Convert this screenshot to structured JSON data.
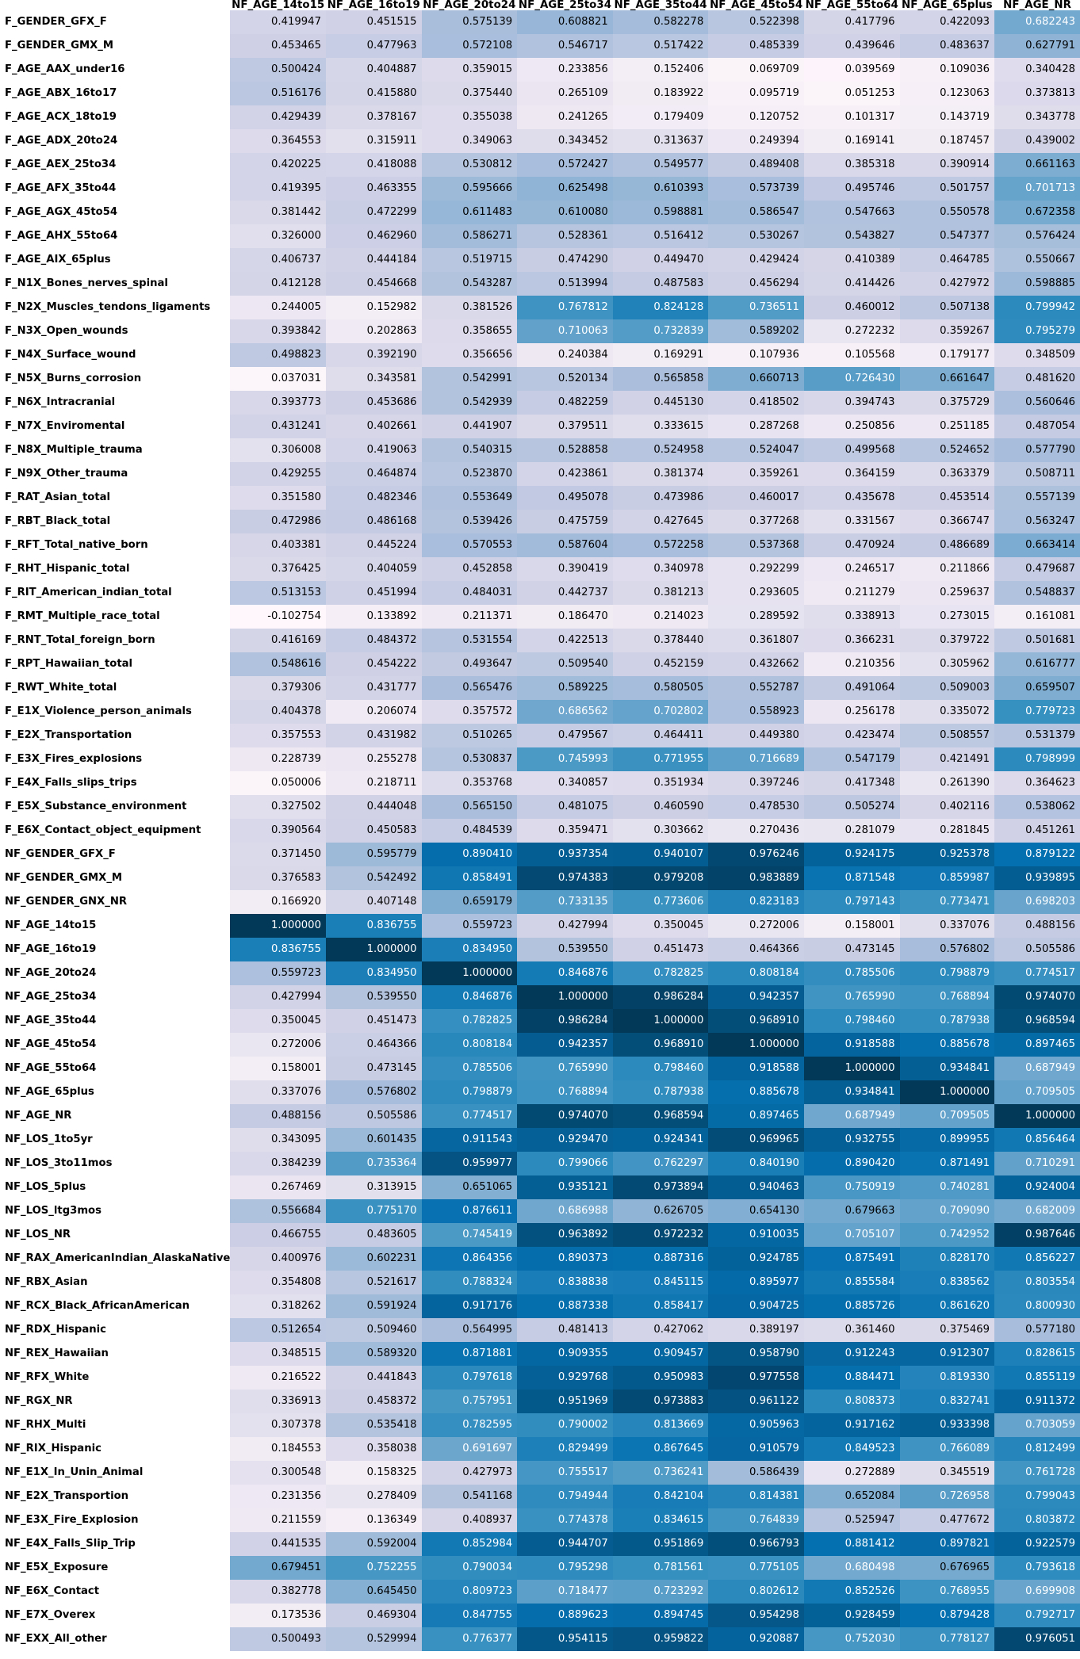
{
  "chart_data": {
    "type": "heatmap",
    "title": "",
    "colorscale": {
      "low": "#fff7fb",
      "mid": "#a6bddb",
      "high": "#023858",
      "min": 0.0,
      "max": 1.0
    },
    "columns": [
      "NF_AGE_14to15",
      "NF_AGE_16to19",
      "NF_AGE_20to24",
      "NF_AGE_25to34",
      "NF_AGE_35to44",
      "NF_AGE_45to54",
      "NF_AGE_55to64",
      "NF_AGE_65plus",
      "NF_AGE_NR"
    ],
    "rows": [
      {
        "label": "F_GENDER_GFX_F",
        "values": [
          "0.419947",
          "0.451515",
          "0.575139",
          "0.608821",
          "0.582278",
          "0.522398",
          "0.417796",
          "0.422093",
          "0.682243"
        ]
      },
      {
        "label": "F_GENDER_GMX_M",
        "values": [
          "0.453465",
          "0.477963",
          "0.572108",
          "0.546717",
          "0.517422",
          "0.485339",
          "0.439646",
          "0.483637",
          "0.627791"
        ]
      },
      {
        "label": "F_AGE_AAX_under16",
        "values": [
          "0.500424",
          "0.404887",
          "0.359015",
          "0.233856",
          "0.152406",
          "0.069709",
          "0.039569",
          "0.109036",
          "0.340428"
        ]
      },
      {
        "label": "F_AGE_ABX_16to17",
        "values": [
          "0.516176",
          "0.415880",
          "0.375440",
          "0.265109",
          "0.183922",
          "0.095719",
          "0.051253",
          "0.123063",
          "0.373813"
        ]
      },
      {
        "label": "F_AGE_ACX_18to19",
        "values": [
          "0.429439",
          "0.378167",
          "0.355038",
          "0.241265",
          "0.179409",
          "0.120752",
          "0.101317",
          "0.143719",
          "0.343778"
        ]
      },
      {
        "label": "F_AGE_ADX_20to24",
        "values": [
          "0.364553",
          "0.315911",
          "0.349063",
          "0.343452",
          "0.313637",
          "0.249394",
          "0.169141",
          "0.187457",
          "0.439002"
        ]
      },
      {
        "label": "F_AGE_AEX_25to34",
        "values": [
          "0.420225",
          "0.418088",
          "0.530812",
          "0.572427",
          "0.549577",
          "0.489408",
          "0.385318",
          "0.390914",
          "0.661163"
        ]
      },
      {
        "label": "F_AGE_AFX_35to44",
        "values": [
          "0.419395",
          "0.463355",
          "0.595666",
          "0.625498",
          "0.610393",
          "0.573739",
          "0.495746",
          "0.501757",
          "0.701713"
        ]
      },
      {
        "label": "F_AGE_AGX_45to54",
        "values": [
          "0.381442",
          "0.472299",
          "0.611483",
          "0.610080",
          "0.598881",
          "0.586547",
          "0.547663",
          "0.550578",
          "0.672358"
        ]
      },
      {
        "label": "F_AGE_AHX_55to64",
        "values": [
          "0.326000",
          "0.462960",
          "0.586271",
          "0.528361",
          "0.516412",
          "0.530267",
          "0.543827",
          "0.547377",
          "0.576424"
        ]
      },
      {
        "label": "F_AGE_AIX_65plus",
        "values": [
          "0.406737",
          "0.444184",
          "0.519715",
          "0.474290",
          "0.449470",
          "0.429424",
          "0.410389",
          "0.464785",
          "0.550667"
        ]
      },
      {
        "label": "F_N1X_Bones_nerves_spinal",
        "values": [
          "0.412128",
          "0.454668",
          "0.543287",
          "0.513994",
          "0.487583",
          "0.456294",
          "0.414426",
          "0.427972",
          "0.598885"
        ]
      },
      {
        "label": "F_N2X_Muscles_tendons_ligaments",
        "values": [
          "0.244005",
          "0.152982",
          "0.381526",
          "0.767812",
          "0.824128",
          "0.736511",
          "0.460012",
          "0.507138",
          "0.799942"
        ]
      },
      {
        "label": "F_N3X_Open_wounds",
        "values": [
          "0.393842",
          "0.202863",
          "0.358655",
          "0.710063",
          "0.732839",
          "0.589202",
          "0.272232",
          "0.359267",
          "0.795279"
        ]
      },
      {
        "label": "F_N4X_Surface_wound",
        "values": [
          "0.498823",
          "0.392190",
          "0.356656",
          "0.240384",
          "0.169291",
          "0.107936",
          "0.105568",
          "0.179177",
          "0.348509"
        ]
      },
      {
        "label": "F_N5X_Burns_corrosion",
        "values": [
          "0.037031",
          "0.343581",
          "0.542991",
          "0.520134",
          "0.565858",
          "0.660713",
          "0.726430",
          "0.661647",
          "0.481620"
        ]
      },
      {
        "label": "F_N6X_Intracranial",
        "values": [
          "0.393773",
          "0.453686",
          "0.542939",
          "0.482259",
          "0.445130",
          "0.418502",
          "0.394743",
          "0.375729",
          "0.560646"
        ]
      },
      {
        "label": "F_N7X_Enviromental",
        "values": [
          "0.431241",
          "0.402661",
          "0.441907",
          "0.379511",
          "0.333615",
          "0.287268",
          "0.250856",
          "0.251185",
          "0.487054"
        ]
      },
      {
        "label": "F_N8X_Multiple_trauma",
        "values": [
          "0.306008",
          "0.419063",
          "0.540315",
          "0.528858",
          "0.524958",
          "0.524047",
          "0.499568",
          "0.524652",
          "0.577790"
        ]
      },
      {
        "label": "F_N9X_Other_trauma",
        "values": [
          "0.429255",
          "0.464874",
          "0.523870",
          "0.423861",
          "0.381374",
          "0.359261",
          "0.364159",
          "0.363379",
          "0.508711"
        ]
      },
      {
        "label": "F_RAT_Asian_total",
        "values": [
          "0.351580",
          "0.482346",
          "0.553649",
          "0.495078",
          "0.473986",
          "0.460017",
          "0.435678",
          "0.453514",
          "0.557139"
        ]
      },
      {
        "label": "F_RBT_Black_total",
        "values": [
          "0.472986",
          "0.486168",
          "0.539426",
          "0.475759",
          "0.427645",
          "0.377268",
          "0.331567",
          "0.366747",
          "0.563247"
        ]
      },
      {
        "label": "F_RFT_Total_native_born",
        "values": [
          "0.403381",
          "0.445224",
          "0.570553",
          "0.587604",
          "0.572258",
          "0.537368",
          "0.470924",
          "0.486689",
          "0.663414"
        ]
      },
      {
        "label": "F_RHT_Hispanic_total",
        "values": [
          "0.376425",
          "0.404059",
          "0.452858",
          "0.390419",
          "0.340978",
          "0.292299",
          "0.246517",
          "0.211866",
          "0.479687"
        ]
      },
      {
        "label": "F_RIT_American_indian_total",
        "values": [
          "0.513153",
          "0.451994",
          "0.484031",
          "0.442737",
          "0.381213",
          "0.293605",
          "0.211279",
          "0.259637",
          "0.548837"
        ]
      },
      {
        "label": "F_RMT_Multiple_race_total",
        "values": [
          "-0.102754",
          "0.133892",
          "0.211371",
          "0.186470",
          "0.214023",
          "0.289592",
          "0.338913",
          "0.273015",
          "0.161081"
        ]
      },
      {
        "label": "F_RNT_Total_foreign_born",
        "values": [
          "0.416169",
          "0.484372",
          "0.531554",
          "0.422513",
          "0.378440",
          "0.361807",
          "0.366231",
          "0.379722",
          "0.501681"
        ]
      },
      {
        "label": "F_RPT_Hawaiian_total",
        "values": [
          "0.548616",
          "0.454222",
          "0.493647",
          "0.509540",
          "0.452159",
          "0.432662",
          "0.210356",
          "0.305962",
          "0.616777"
        ]
      },
      {
        "label": "F_RWT_White_total",
        "values": [
          "0.379306",
          "0.431777",
          "0.565476",
          "0.589225",
          "0.580505",
          "0.552787",
          "0.491064",
          "0.509003",
          "0.659507"
        ]
      },
      {
        "label": "F_E1X_Violence_person_animals",
        "values": [
          "0.404378",
          "0.206074",
          "0.357572",
          "0.686562",
          "0.702802",
          "0.558923",
          "0.256178",
          "0.335072",
          "0.779723"
        ]
      },
      {
        "label": "F_E2X_Transportation",
        "values": [
          "0.357553",
          "0.431982",
          "0.510265",
          "0.479567",
          "0.464411",
          "0.449380",
          "0.423474",
          "0.508557",
          "0.531379"
        ]
      },
      {
        "label": "F_E3X_Fires_explosions",
        "values": [
          "0.228739",
          "0.255278",
          "0.530837",
          "0.745993",
          "0.771955",
          "0.716689",
          "0.547179",
          "0.421491",
          "0.798999"
        ]
      },
      {
        "label": "F_E4X_Falls_slips_trips",
        "values": [
          "0.050006",
          "0.218711",
          "0.353768",
          "0.340857",
          "0.351934",
          "0.397246",
          "0.417348",
          "0.261390",
          "0.364623"
        ]
      },
      {
        "label": "F_E5X_Substance_environment",
        "values": [
          "0.327502",
          "0.444048",
          "0.565150",
          "0.481075",
          "0.460590",
          "0.478530",
          "0.505274",
          "0.402116",
          "0.538062"
        ]
      },
      {
        "label": "F_E6X_Contact_object_equipment",
        "values": [
          "0.390564",
          "0.450583",
          "0.484539",
          "0.359471",
          "0.303662",
          "0.270436",
          "0.281079",
          "0.281845",
          "0.451261"
        ]
      },
      {
        "label": "NF_GENDER_GFX_F",
        "values": [
          "0.371450",
          "0.595779",
          "0.890410",
          "0.937354",
          "0.940107",
          "0.976246",
          "0.924175",
          "0.925378",
          "0.879122"
        ]
      },
      {
        "label": "NF_GENDER_GMX_M",
        "values": [
          "0.376583",
          "0.542492",
          "0.858491",
          "0.974383",
          "0.979208",
          "0.983889",
          "0.871548",
          "0.859987",
          "0.939895"
        ]
      },
      {
        "label": "NF_GENDER_GNX_NR",
        "values": [
          "0.166920",
          "0.407148",
          "0.659179",
          "0.733135",
          "0.773606",
          "0.823183",
          "0.797143",
          "0.773471",
          "0.698203"
        ]
      },
      {
        "label": "NF_AGE_14to15",
        "values": [
          "1.000000",
          "0.836755",
          "0.559723",
          "0.427994",
          "0.350045",
          "0.272006",
          "0.158001",
          "0.337076",
          "0.488156"
        ]
      },
      {
        "label": "NF_AGE_16to19",
        "values": [
          "0.836755",
          "1.000000",
          "0.834950",
          "0.539550",
          "0.451473",
          "0.464366",
          "0.473145",
          "0.576802",
          "0.505586"
        ]
      },
      {
        "label": "NF_AGE_20to24",
        "values": [
          "0.559723",
          "0.834950",
          "1.000000",
          "0.846876",
          "0.782825",
          "0.808184",
          "0.785506",
          "0.798879",
          "0.774517"
        ]
      },
      {
        "label": "NF_AGE_25to34",
        "values": [
          "0.427994",
          "0.539550",
          "0.846876",
          "1.000000",
          "0.986284",
          "0.942357",
          "0.765990",
          "0.768894",
          "0.974070"
        ]
      },
      {
        "label": "NF_AGE_35to44",
        "values": [
          "0.350045",
          "0.451473",
          "0.782825",
          "0.986284",
          "1.000000",
          "0.968910",
          "0.798460",
          "0.787938",
          "0.968594"
        ]
      },
      {
        "label": "NF_AGE_45to54",
        "values": [
          "0.272006",
          "0.464366",
          "0.808184",
          "0.942357",
          "0.968910",
          "1.000000",
          "0.918588",
          "0.885678",
          "0.897465"
        ]
      },
      {
        "label": "NF_AGE_55to64",
        "values": [
          "0.158001",
          "0.473145",
          "0.785506",
          "0.765990",
          "0.798460",
          "0.918588",
          "1.000000",
          "0.934841",
          "0.687949"
        ]
      },
      {
        "label": "NF_AGE_65plus",
        "values": [
          "0.337076",
          "0.576802",
          "0.798879",
          "0.768894",
          "0.787938",
          "0.885678",
          "0.934841",
          "1.000000",
          "0.709505"
        ]
      },
      {
        "label": "NF_AGE_NR",
        "values": [
          "0.488156",
          "0.505586",
          "0.774517",
          "0.974070",
          "0.968594",
          "0.897465",
          "0.687949",
          "0.709505",
          "1.000000"
        ]
      },
      {
        "label": "NF_LOS_1to5yr",
        "values": [
          "0.343095",
          "0.601435",
          "0.911543",
          "0.929470",
          "0.924341",
          "0.969965",
          "0.932755",
          "0.899955",
          "0.856464"
        ]
      },
      {
        "label": "NF_LOS_3to11mos",
        "values": [
          "0.384239",
          "0.735364",
          "0.959977",
          "0.799066",
          "0.762297",
          "0.840190",
          "0.890420",
          "0.871491",
          "0.710291"
        ]
      },
      {
        "label": "NF_LOS_5plus",
        "values": [
          "0.267469",
          "0.313915",
          "0.651065",
          "0.935121",
          "0.973894",
          "0.940463",
          "0.750919",
          "0.740281",
          "0.924004"
        ]
      },
      {
        "label": "NF_LOS_ltg3mos",
        "values": [
          "0.556684",
          "0.775170",
          "0.876611",
          "0.686988",
          "0.626705",
          "0.654130",
          "0.679663",
          "0.709090",
          "0.682009"
        ]
      },
      {
        "label": "NF_LOS_NR",
        "values": [
          "0.466755",
          "0.483605",
          "0.745419",
          "0.963892",
          "0.972232",
          "0.910035",
          "0.705107",
          "0.742952",
          "0.987646"
        ]
      },
      {
        "label": "NF_RAX_AmericanIndian_AlaskaNative",
        "values": [
          "0.400976",
          "0.602231",
          "0.864356",
          "0.890373",
          "0.887316",
          "0.924785",
          "0.875491",
          "0.828170",
          "0.856227"
        ]
      },
      {
        "label": "NF_RBX_Asian",
        "values": [
          "0.354808",
          "0.521617",
          "0.788324",
          "0.838838",
          "0.845115",
          "0.895977",
          "0.855584",
          "0.838562",
          "0.803554"
        ]
      },
      {
        "label": "NF_RCX_Black_AfricanAmerican",
        "values": [
          "0.318262",
          "0.591924",
          "0.917176",
          "0.887338",
          "0.858417",
          "0.904725",
          "0.885726",
          "0.861620",
          "0.800930"
        ]
      },
      {
        "label": "NF_RDX_Hispanic",
        "values": [
          "0.512654",
          "0.509460",
          "0.564995",
          "0.481413",
          "0.427062",
          "0.389197",
          "0.361460",
          "0.375469",
          "0.577180"
        ]
      },
      {
        "label": "NF_REX_Hawaiian",
        "values": [
          "0.348515",
          "0.589320",
          "0.871881",
          "0.909355",
          "0.909457",
          "0.958790",
          "0.912243",
          "0.912307",
          "0.828615"
        ]
      },
      {
        "label": "NF_RFX_White",
        "values": [
          "0.216522",
          "0.441843",
          "0.797618",
          "0.929768",
          "0.950983",
          "0.977558",
          "0.884471",
          "0.819330",
          "0.855119"
        ]
      },
      {
        "label": "NF_RGX_NR",
        "values": [
          "0.336913",
          "0.458372",
          "0.757951",
          "0.951969",
          "0.973883",
          "0.961122",
          "0.808373",
          "0.832741",
          "0.911372"
        ]
      },
      {
        "label": "NF_RHX_Multi",
        "values": [
          "0.307378",
          "0.535418",
          "0.782595",
          "0.790002",
          "0.813669",
          "0.905963",
          "0.917162",
          "0.933398",
          "0.703059"
        ]
      },
      {
        "label": "NF_RIX_Hispanic",
        "values": [
          "0.184553",
          "0.358038",
          "0.691697",
          "0.829499",
          "0.867645",
          "0.910579",
          "0.849523",
          "0.766089",
          "0.812499"
        ]
      },
      {
        "label": "NF_E1X_In_Unin_Animal",
        "values": [
          "0.300548",
          "0.158325",
          "0.427973",
          "0.755517",
          "0.736241",
          "0.586439",
          "0.272889",
          "0.345519",
          "0.761728"
        ]
      },
      {
        "label": "NF_E2X_Transportion",
        "values": [
          "0.231356",
          "0.278409",
          "0.541168",
          "0.794944",
          "0.842104",
          "0.814381",
          "0.652084",
          "0.726958",
          "0.799043"
        ]
      },
      {
        "label": "NF_E3X_Fire_Explosion",
        "values": [
          "0.211559",
          "0.136349",
          "0.408937",
          "0.774378",
          "0.834615",
          "0.764839",
          "0.525947",
          "0.477672",
          "0.803872"
        ]
      },
      {
        "label": "NF_E4X_Falls_Slip_Trip",
        "values": [
          "0.441535",
          "0.592004",
          "0.852984",
          "0.944707",
          "0.951869",
          "0.966793",
          "0.881412",
          "0.897821",
          "0.922579"
        ]
      },
      {
        "label": "NF_E5X_Exposure",
        "values": [
          "0.679451",
          "0.752255",
          "0.790034",
          "0.795298",
          "0.781561",
          "0.775105",
          "0.680498",
          "0.676965",
          "0.793618"
        ]
      },
      {
        "label": "NF_E6X_Contact",
        "values": [
          "0.382778",
          "0.645450",
          "0.809723",
          "0.718477",
          "0.723292",
          "0.802612",
          "0.852526",
          "0.768955",
          "0.699908"
        ]
      },
      {
        "label": "NF_E7X_Overex",
        "values": [
          "0.173536",
          "0.469304",
          "0.847755",
          "0.889623",
          "0.894745",
          "0.954298",
          "0.928459",
          "0.879428",
          "0.792717"
        ]
      },
      {
        "label": "NF_EXX_All_other",
        "values": [
          "0.500493",
          "0.529994",
          "0.776377",
          "0.954115",
          "0.959822",
          "0.920887",
          "0.752030",
          "0.778127",
          "0.976051"
        ]
      }
    ]
  }
}
